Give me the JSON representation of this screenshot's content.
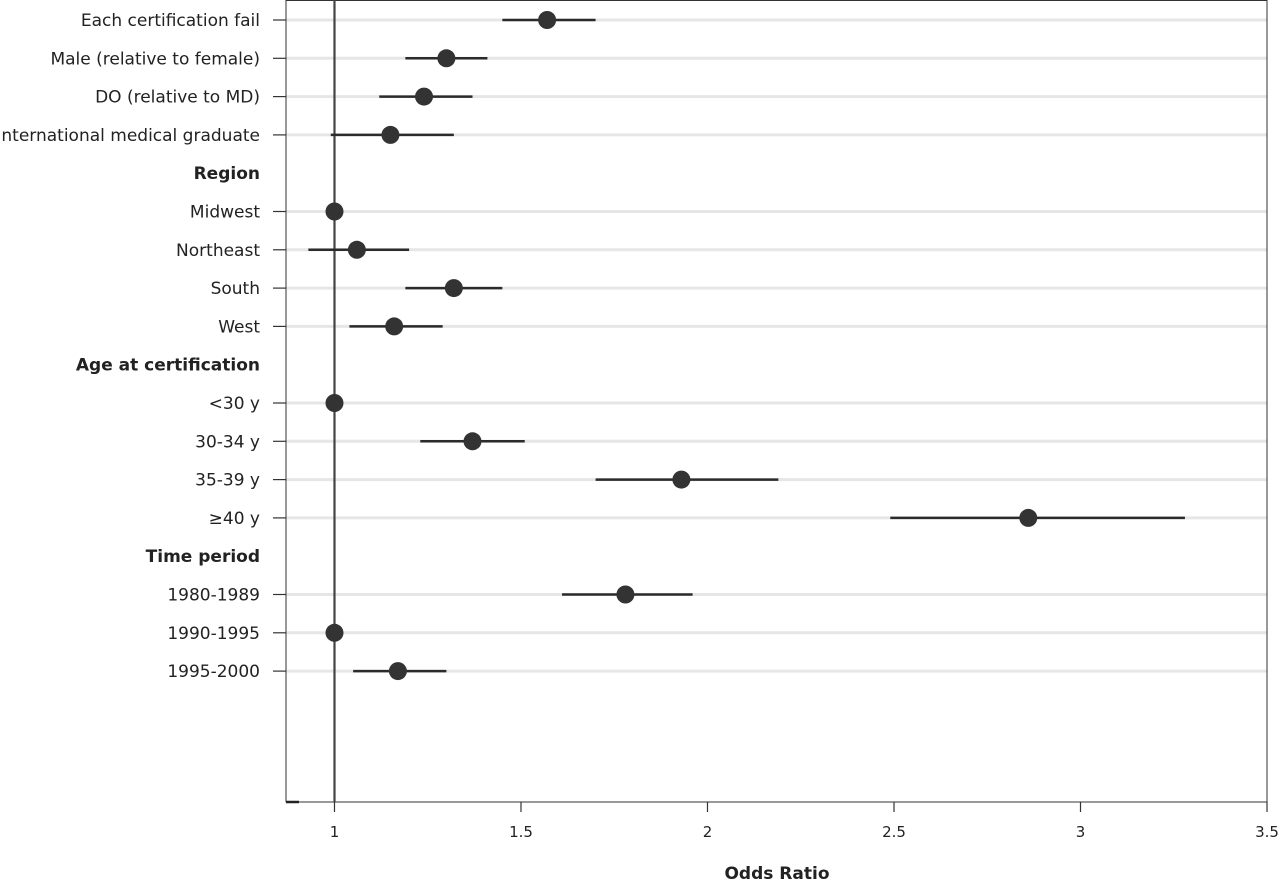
{
  "chart_data": {
    "type": "forest",
    "xlabel": "Odds Ratio",
    "xlim": [
      0.87,
      3.5
    ],
    "x_ticks": [
      1,
      1.5,
      2,
      2.5,
      3,
      3.5
    ],
    "x_tick_labels": [
      "1",
      "1.5",
      "2",
      "2.5",
      "3",
      "3.5"
    ],
    "reference_line": 1,
    "grid": "horizontal",
    "rows": [
      {
        "label": "Each certification fail",
        "or": 1.57,
        "lo": 1.45,
        "hi": 1.7
      },
      {
        "label": "Male (relative to female)",
        "or": 1.3,
        "lo": 1.19,
        "hi": 1.41
      },
      {
        "label": "DO (relative to MD)",
        "or": 1.24,
        "lo": 1.12,
        "hi": 1.37
      },
      {
        "label": "International medical graduate",
        "or": 1.15,
        "lo": 0.99,
        "hi": 1.32
      },
      {
        "group": "Region"
      },
      {
        "label": "Midwest",
        "or": 1.0
      },
      {
        "label": "Northeast",
        "or": 1.06,
        "lo": 0.93,
        "hi": 1.2
      },
      {
        "label": "South",
        "or": 1.32,
        "lo": 1.19,
        "hi": 1.45
      },
      {
        "label": "West",
        "or": 1.16,
        "lo": 1.04,
        "hi": 1.29
      },
      {
        "group": "Age at certification"
      },
      {
        "label": "<30 y",
        "or": 1.0
      },
      {
        "label": "30-34 y",
        "or": 1.37,
        "lo": 1.23,
        "hi": 1.51
      },
      {
        "label": "35-39 y",
        "or": 1.93,
        "lo": 1.7,
        "hi": 2.19
      },
      {
        "label": "≥40 y",
        "or": 2.86,
        "lo": 2.49,
        "hi": 3.28
      },
      {
        "group": "Time period"
      },
      {
        "label": "1980-1989",
        "or": 1.78,
        "lo": 1.61,
        "hi": 1.96
      },
      {
        "label": "1990-1995",
        "or": 1.0
      },
      {
        "label": "1995-2000",
        "or": 1.17,
        "lo": 1.05,
        "hi": 1.3
      }
    ]
  }
}
